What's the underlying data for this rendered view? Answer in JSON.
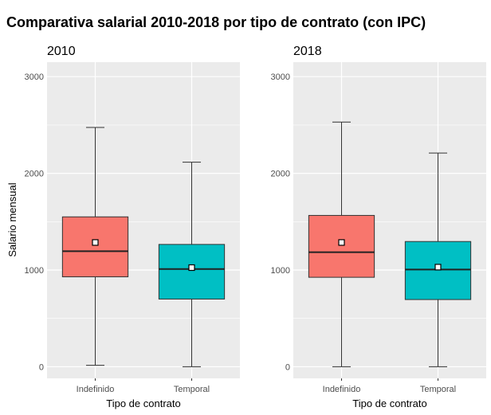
{
  "title": "Comparativa salarial 2010-2018 por tipo de contrato (con IPC)",
  "chart_data": [
    {
      "type": "box",
      "title": "2010",
      "xlabel": "Tipo de contrato",
      "ylabel": "Salario mensual",
      "ylim": [
        -120,
        3150
      ],
      "yticks": [
        "0",
        "1000",
        "2000",
        "3000"
      ],
      "grid": true,
      "categories": [
        "Indefinido",
        "Temporal"
      ],
      "boxes": [
        {
          "category": "Indefinido",
          "min": 15,
          "q1": 930,
          "median": 1195,
          "q3": 1550,
          "max": 2475,
          "mean": 1285,
          "color": "#F8766D"
        },
        {
          "category": "Temporal",
          "min": 0,
          "q1": 700,
          "median": 1010,
          "q3": 1265,
          "max": 2115,
          "mean": 1025,
          "color": "#00BFC4"
        }
      ]
    },
    {
      "type": "box",
      "title": "2018",
      "xlabel": "Tipo de contrato",
      "ylabel": "",
      "ylim": [
        -120,
        3150
      ],
      "yticks": [
        "0",
        "1000",
        "2000",
        "3000"
      ],
      "grid": true,
      "categories": [
        "Indefinido",
        "Temporal"
      ],
      "boxes": [
        {
          "category": "Indefinido",
          "min": 0,
          "q1": 925,
          "median": 1185,
          "q3": 1565,
          "max": 2530,
          "mean": 1285,
          "color": "#F8766D"
        },
        {
          "category": "Temporal",
          "min": 0,
          "q1": 695,
          "median": 1005,
          "q3": 1295,
          "max": 2210,
          "mean": 1030,
          "color": "#00BFC4"
        }
      ]
    }
  ]
}
